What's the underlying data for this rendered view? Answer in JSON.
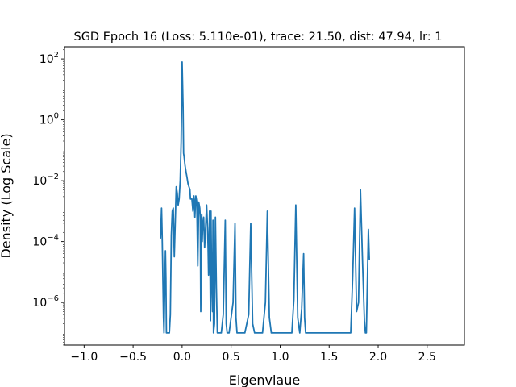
{
  "chart_data": {
    "type": "line",
    "title": "SGD Epoch 16 (Loss: 5.110e-01), trace: 21.50, dist: 47.94, lr: 1",
    "xlabel": "Eigenvlaue",
    "ylabel": "Density (Log Scale)",
    "xlim": [
      -1.2,
      2.88
    ],
    "ylim_log10": [
      -7.4,
      2.4
    ],
    "yscale": "log",
    "grid": false,
    "line_color": "#1f77b4",
    "xticks": [
      -1.0,
      -0.5,
      0.0,
      0.5,
      1.0,
      1.5,
      2.0,
      2.5
    ],
    "xtick_labels": [
      "−1.0",
      "−0.5",
      "0.0",
      "0.5",
      "1.0",
      "1.5",
      "2.0",
      "2.5"
    ],
    "yticks": [
      {
        "exp": 2,
        "label": "10",
        "sup": "2"
      },
      {
        "exp": 0,
        "label": "10",
        "sup": "0"
      },
      {
        "exp": -2,
        "label": "10",
        "sup": "−2"
      },
      {
        "exp": -4,
        "label": "10",
        "sup": "−4"
      },
      {
        "exp": -6,
        "label": "10",
        "sup": "−6"
      }
    ],
    "series": [
      {
        "x": [
          -0.22,
          -0.21,
          -0.205,
          -0.2,
          -0.19,
          -0.185,
          -0.18,
          -0.17,
          -0.165,
          -0.16,
          -0.15,
          -0.14,
          -0.13,
          -0.12,
          -0.11,
          -0.1,
          -0.09,
          -0.08,
          -0.06,
          -0.05,
          -0.04,
          -0.03,
          -0.02,
          -0.01,
          0.0,
          0.01,
          0.015,
          0.02,
          0.03,
          0.04,
          0.05,
          0.06,
          0.07,
          0.08,
          0.085,
          0.09,
          0.1,
          0.11,
          0.12,
          0.125,
          0.13,
          0.14,
          0.15,
          0.16,
          0.17,
          0.18,
          0.185,
          0.19,
          0.2,
          0.205,
          0.21,
          0.22,
          0.23,
          0.24,
          0.25,
          0.26,
          0.265,
          0.27,
          0.28,
          0.29,
          0.295,
          0.3,
          0.31,
          0.315,
          0.32,
          0.33,
          0.34,
          0.35,
          0.36,
          0.4,
          0.42,
          0.44,
          0.45,
          0.46,
          0.48,
          0.52,
          0.54,
          0.55,
          0.56,
          0.58,
          0.64,
          0.68,
          0.7,
          0.72,
          0.74,
          0.76,
          0.82,
          0.85,
          0.87,
          0.89,
          0.91,
          1.12,
          1.14,
          1.16,
          1.18,
          1.2,
          1.22,
          1.24,
          1.25,
          1.26,
          1.28,
          1.3,
          1.72,
          1.74,
          1.76,
          1.78,
          1.8,
          1.82,
          1.84,
          1.86,
          1.87,
          1.88,
          1.9,
          1.91
        ],
        "y_log10": [
          -3.9,
          -2.9,
          -3.6,
          -4.5,
          -6.5,
          -7.0,
          -6.0,
          -4.3,
          -5.2,
          -7.0,
          -7.0,
          -7.0,
          -7.0,
          -6.4,
          -3.8,
          -3.0,
          -2.9,
          -4.5,
          -2.2,
          -2.4,
          -2.8,
          -2.6,
          -2.0,
          -0.7,
          1.9,
          0.4,
          -1.1,
          -1.2,
          -1.5,
          -1.7,
          -1.9,
          -2.1,
          -2.2,
          -2.3,
          -2.6,
          -2.6,
          -2.6,
          -3.0,
          -2.5,
          -2.7,
          -3.2,
          -2.5,
          -2.7,
          -4.8,
          -2.7,
          -2.9,
          -3.2,
          -6.3,
          -3.1,
          -4.0,
          -3.5,
          -3.2,
          -4.2,
          -3.5,
          -2.8,
          -3.6,
          -4.2,
          -5.1,
          -3.0,
          -6.6,
          -3.0,
          -5.0,
          -6.3,
          -3.3,
          -7.0,
          -6.7,
          -3.2,
          -5.5,
          -7.0,
          -7.0,
          -6.4,
          -3.3,
          -6.7,
          -7.0,
          -7.0,
          -6.0,
          -3.4,
          -6.5,
          -7.0,
          -7.0,
          -7.0,
          -6.4,
          -3.4,
          -6.7,
          -7.0,
          -7.0,
          -7.0,
          -6.0,
          -3.0,
          -6.5,
          -7.0,
          -7.0,
          -5.9,
          -2.8,
          -6.5,
          -7.0,
          -6.2,
          -4.4,
          -6.5,
          -7.0,
          -7.0,
          -7.0,
          -7.0,
          -5.2,
          -2.9,
          -6.3,
          -6.0,
          -2.3,
          -4.6,
          -6.6,
          -7.0,
          -7.0,
          -3.6,
          -4.6
        ]
      }
    ]
  }
}
